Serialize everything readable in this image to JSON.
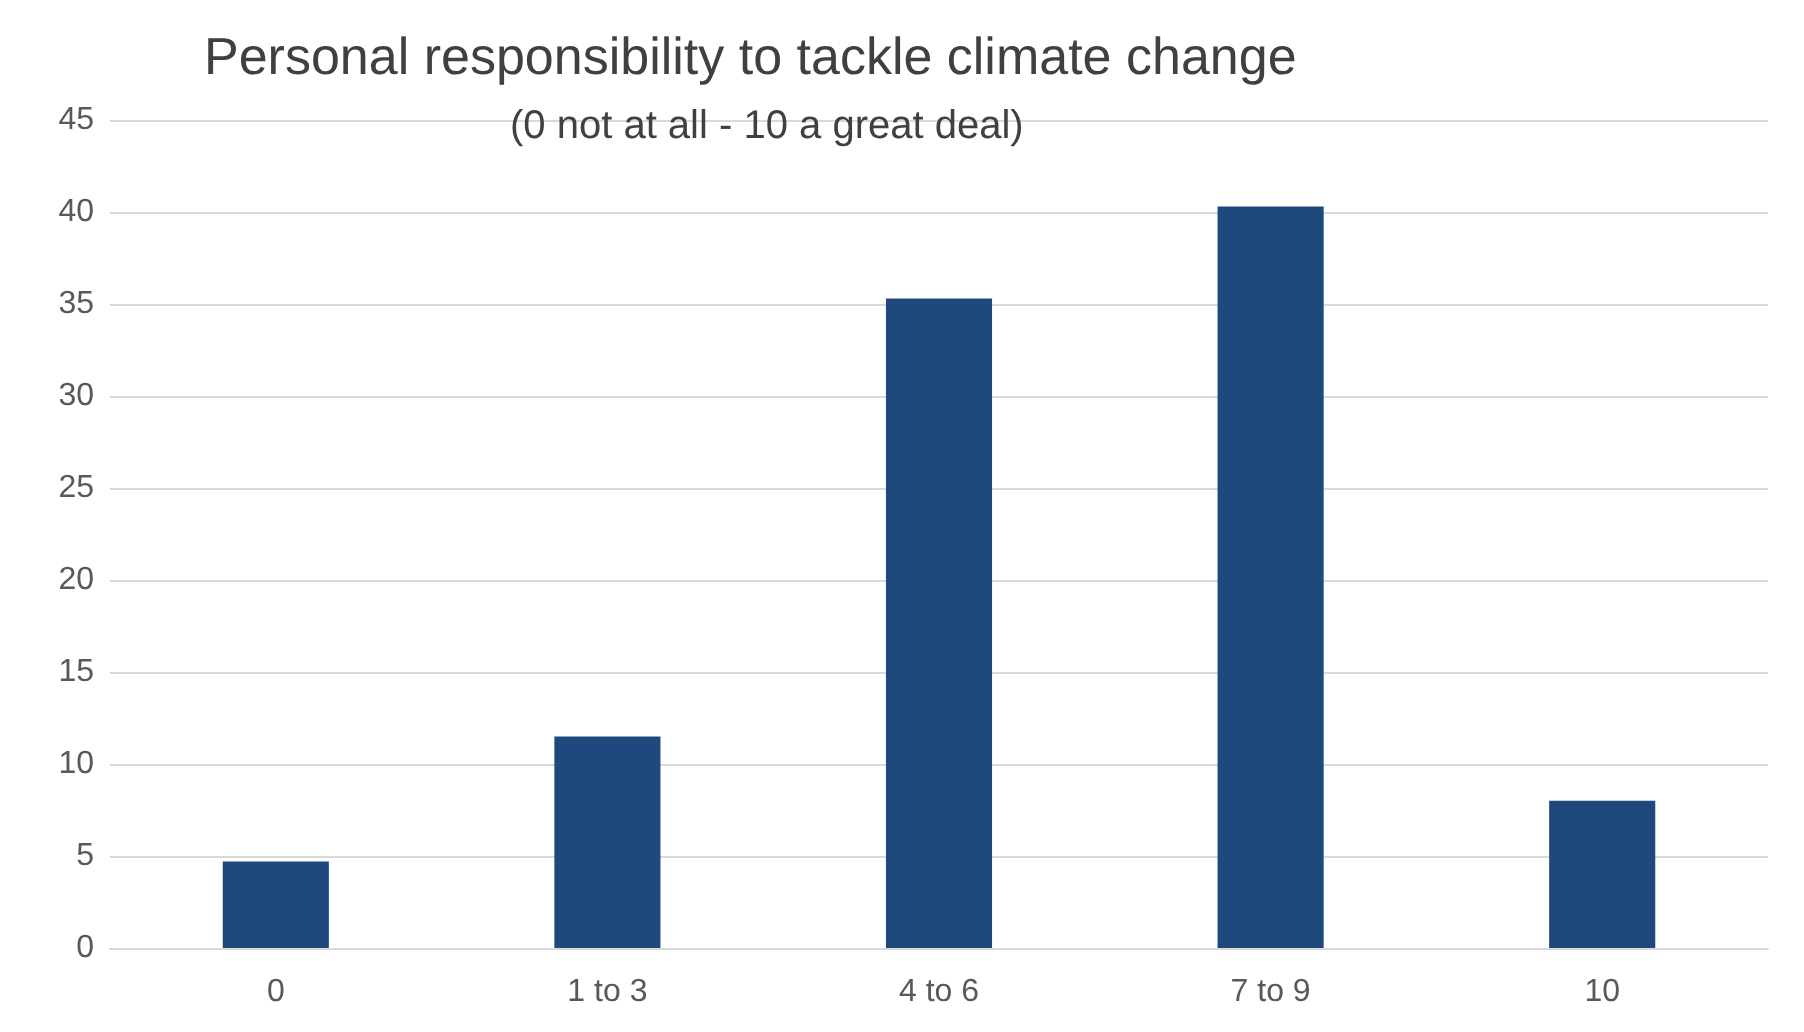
{
  "chart_data": {
    "type": "bar",
    "title": "Personal responsibility to tackle climate change",
    "subtitle": "(0 not at all - 10 a great deal)",
    "categories": [
      "0",
      "1 to 3",
      "4 to 6",
      "7 to 9",
      "10"
    ],
    "values": [
      4.7,
      11.5,
      35.3,
      40.3,
      8.0
    ],
    "color": "#1f497d",
    "ylim": [
      0,
      45
    ],
    "yticks": [
      0,
      5,
      10,
      15,
      20,
      25,
      30,
      35,
      40,
      45
    ],
    "grid": "y"
  }
}
